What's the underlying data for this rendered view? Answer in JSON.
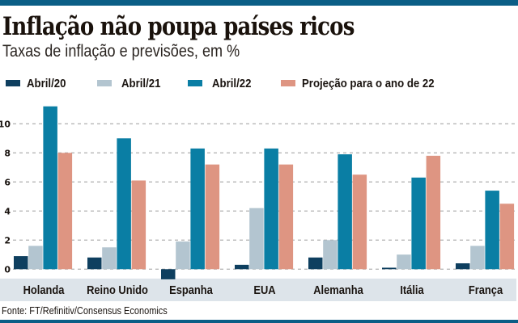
{
  "header": {
    "title": "Inflação não poupa países ricos",
    "subtitle": "Taxas de inflação e previsões, em %"
  },
  "footer": {
    "source": "Fonte: FT/Refinitiv/Consensus Economics"
  },
  "colors": {
    "brand_bar": "#0b5e86",
    "category_band": "#dde4ea",
    "gridline": "#9a9a9a"
  },
  "chart_data": {
    "type": "bar",
    "title": "Inflação não poupa países ricos",
    "subtitle": "Taxas de inflação e previsões, em %",
    "xlabel": "",
    "ylabel": "",
    "ylim": [
      -1,
      11.5
    ],
    "yticks": [
      0,
      2,
      4,
      6,
      8,
      10
    ],
    "ytick_labels": [
      "0",
      "2",
      "4",
      "6",
      "8",
      "10"
    ],
    "grid": true,
    "legend_position": "top-left",
    "categories": [
      "Holanda",
      "Reino Unido",
      "Espanha",
      "EUA",
      "Alemanha",
      "Itália",
      "França"
    ],
    "series": [
      {
        "name": "Abril/20",
        "color": "#0e3f5f",
        "values": [
          0.9,
          0.8,
          -0.7,
          0.3,
          0.8,
          0.1,
          0.4
        ]
      },
      {
        "name": "Abril/21",
        "color": "#b3c5d0",
        "values": [
          1.6,
          1.5,
          1.9,
          4.2,
          2.0,
          1.0,
          1.6
        ]
      },
      {
        "name": "Abril/22",
        "color": "#0a7ea4",
        "values": [
          11.2,
          9.0,
          8.3,
          8.3,
          7.9,
          6.3,
          5.4
        ]
      },
      {
        "name": "Projeção para o ano de 22",
        "color": "#de9582",
        "values": [
          8.0,
          6.1,
          7.2,
          7.2,
          6.5,
          7.8,
          4.5
        ]
      }
    ],
    "source": "Fonte: FT/Refinitiv/Consensus Economics"
  }
}
